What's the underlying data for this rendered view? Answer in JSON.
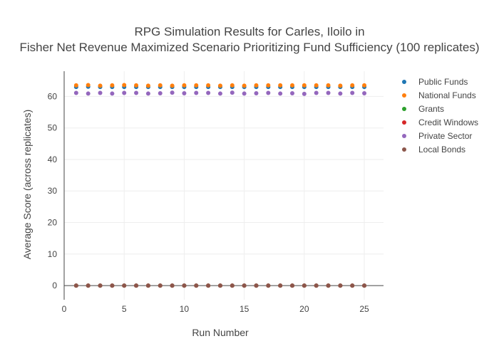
{
  "chart_data": {
    "type": "scatter",
    "title_line1": "RPG Simulation Results for Carles, Iloilo in",
    "title_line2": "Fisher Net Revenue Maximized Scenario Prioritizing Fund Sufficiency (100 replicates)",
    "xlabel": "Run Number",
    "ylabel": "Average Score (across replicates)",
    "xlim": [
      0,
      26.6
    ],
    "ylim": [
      -4.5,
      68
    ],
    "xticks": [
      0,
      5,
      10,
      15,
      20,
      25
    ],
    "yticks": [
      0,
      10,
      20,
      30,
      40,
      50,
      60
    ],
    "grid": true,
    "legend_position": "right",
    "x": [
      1,
      2,
      3,
      4,
      5,
      6,
      7,
      8,
      9,
      10,
      11,
      12,
      13,
      14,
      15,
      16,
      17,
      18,
      19,
      20,
      21,
      22,
      23,
      24,
      25
    ],
    "series": [
      {
        "name": "Public Funds",
        "color": "#1f77b4",
        "values": [
          63.0,
          63.1,
          63.0,
          63.0,
          63.0,
          63.0,
          63.0,
          63.0,
          63.0,
          63.0,
          63.0,
          63.0,
          63.0,
          63.0,
          63.0,
          63.0,
          63.0,
          63.0,
          63.0,
          63.0,
          63.0,
          63.0,
          63.0,
          63.0,
          63.0
        ]
      },
      {
        "name": "National Funds",
        "color": "#ff7f0e",
        "values": [
          63.5,
          63.6,
          63.4,
          63.5,
          63.6,
          63.5,
          63.4,
          63.5,
          63.4,
          63.5,
          63.5,
          63.5,
          63.4,
          63.5,
          63.4,
          63.5,
          63.5,
          63.5,
          63.5,
          63.5,
          63.5,
          63.5,
          63.4,
          63.5,
          63.5
        ]
      },
      {
        "name": "Grants",
        "color": "#2ca02c",
        "values": [
          0,
          0,
          0,
          0,
          0,
          0,
          0,
          0,
          0,
          0,
          0,
          0,
          0,
          0,
          0,
          0,
          0,
          0,
          0,
          0,
          0,
          0,
          0,
          0,
          0
        ]
      },
      {
        "name": "Credit Windows",
        "color": "#d62728",
        "values": [
          0,
          0,
          0,
          0,
          0,
          0,
          0,
          0,
          0,
          0,
          0,
          0,
          0,
          0,
          0,
          0,
          0,
          0,
          0,
          0,
          0,
          0,
          0,
          0,
          0
        ]
      },
      {
        "name": "Private Sector",
        "color": "#9467bd",
        "values": [
          61.1,
          60.9,
          61.1,
          60.9,
          61.1,
          61.1,
          60.9,
          61.0,
          61.2,
          61.0,
          61.1,
          61.1,
          60.9,
          61.2,
          60.9,
          61.0,
          61.1,
          60.9,
          61.0,
          60.8,
          61.1,
          61.1,
          60.9,
          61.1,
          61.0
        ]
      },
      {
        "name": "Local Bonds",
        "color": "#8c564b",
        "values": [
          0,
          0,
          0,
          0,
          0,
          0,
          0,
          0,
          0,
          0,
          0,
          0,
          0,
          0,
          0,
          0,
          0,
          0,
          0,
          0,
          0,
          0,
          0,
          0,
          0
        ]
      }
    ]
  }
}
